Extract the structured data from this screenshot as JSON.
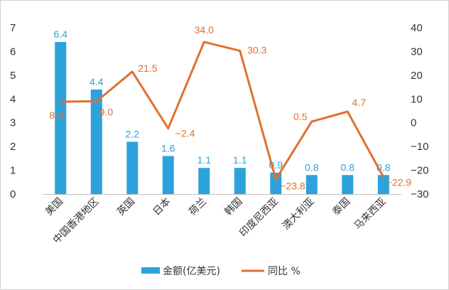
{
  "chart_data": {
    "type": "bar+line",
    "categories": [
      "美国",
      "中国香港地区",
      "英国",
      "日本",
      "荷兰",
      "韩国",
      "印度尼西亚",
      "澳大利亚",
      "泰国",
      "马来西亚"
    ],
    "series": [
      {
        "name": "金额(亿美元)",
        "type": "bar",
        "axis": "left",
        "values": [
          6.4,
          4.4,
          2.2,
          1.6,
          1.1,
          1.1,
          0.9,
          0.8,
          0.8,
          0.8
        ],
        "labels": [
          "6.4",
          "4.4",
          "2.2",
          "1.6",
          "1.1",
          "1.1",
          "0.9",
          "0.8",
          "0.8",
          "0.8"
        ]
      },
      {
        "name": "同比 %",
        "type": "line",
        "axis": "right",
        "values": [
          8.9,
          9.0,
          21.5,
          -2.4,
          34.0,
          30.3,
          -23.8,
          0.5,
          4.7,
          -22.9
        ],
        "labels": [
          "8.9",
          "9.0",
          "21.5",
          "−2.4",
          "34.0",
          "30.3",
          "−23.8",
          "0.5",
          "4.7",
          "−22.9"
        ]
      }
    ],
    "y_left": {
      "ylim": [
        0,
        7
      ],
      "ticks": [
        0,
        1,
        2,
        3,
        4,
        5,
        6,
        7
      ]
    },
    "y_right": {
      "ylim": [
        -30,
        40
      ],
      "ticks": [
        "40",
        "30",
        "20",
        "10",
        "0",
        "−10",
        "−20",
        "−30"
      ]
    },
    "grid": false,
    "legend": "bottom-center",
    "colors": {
      "bar": "#2ca2dc",
      "line": "#e0702e"
    }
  }
}
